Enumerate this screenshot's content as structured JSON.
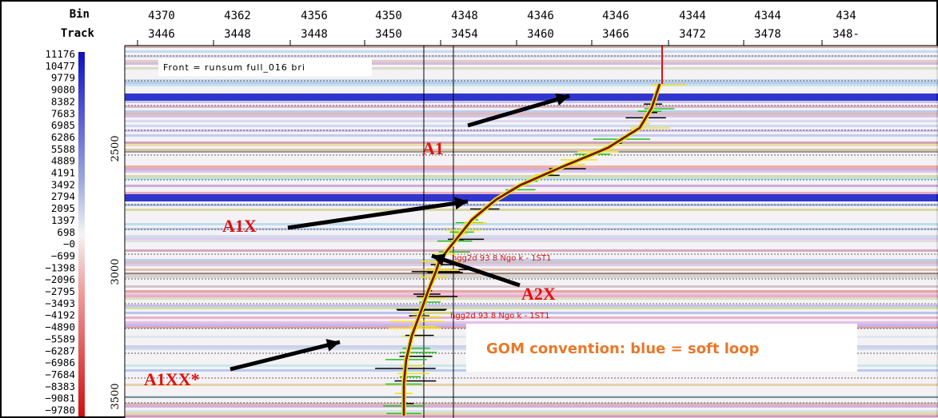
{
  "header": {
    "bin_label": "Bin",
    "track_label": "Track",
    "bins": [
      "4370",
      "4362",
      "4356",
      "4350",
      "4348",
      "4346",
      "4346",
      "4344",
      "4344",
      "434"
    ],
    "tracks": [
      "3446",
      "3448",
      "3448",
      "3450",
      "3454",
      "3460",
      "3466",
      "3472",
      "3478",
      "348-"
    ]
  },
  "color_scale": [
    "11176",
    "10477",
    "9779",
    "9080",
    "8382",
    "7683",
    "6985",
    "6286",
    "5588",
    "4889",
    "4191",
    "3492",
    "2794",
    "2095",
    "1397",
    "698",
    "−0",
    "−699",
    "−1398",
    "−2096",
    "−2795",
    "−3493",
    "−4192",
    "−4890",
    "−5589",
    "−6287",
    "−6986",
    "−7684",
    "−8383",
    "−9081",
    "−9780"
  ],
  "depth_labels": [
    "2500",
    "3000",
    "3500"
  ],
  "display_label": "Front =  runsum full_016 bri",
  "well_labels": [
    "hgg2d 93 8 Ngo k - 1ST1",
    "hgg2d 93 8 Ngo k - 1ST1"
  ],
  "annotations": [
    "A1",
    "A1X",
    "A2X",
    "A1XX*"
  ],
  "note": "GOM convention: blue = soft loop"
}
